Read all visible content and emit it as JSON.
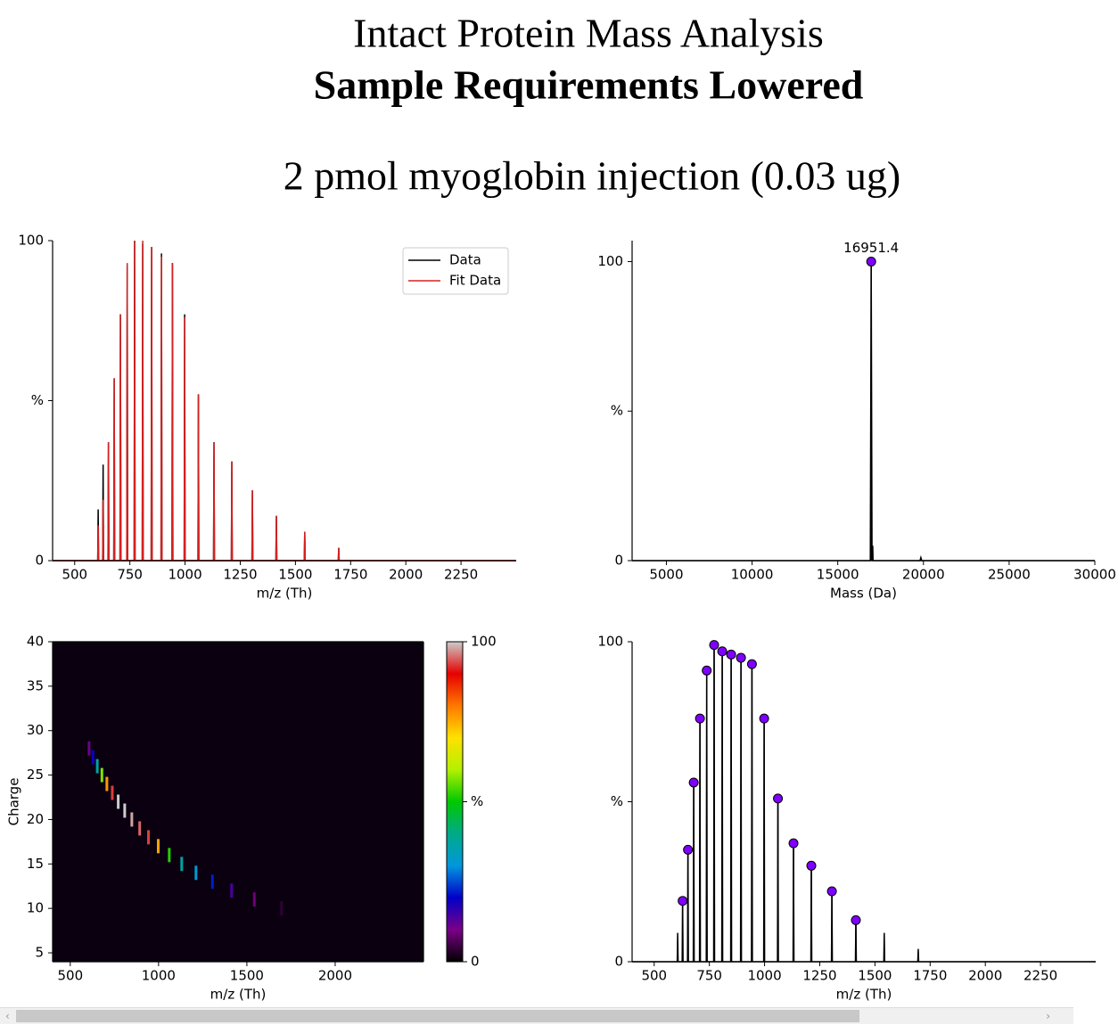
{
  "header": {
    "title": "Intact Protein Mass Analysis",
    "subtitle": "Sample Requirements Lowered",
    "caption": "2 pmol myoglobin injection (0.03 ug)"
  },
  "chart_data": [
    {
      "type": "line",
      "xlabel": "m/z (Th)",
      "xlim": [
        400,
        2500
      ],
      "xticks": [
        500,
        750,
        1000,
        1250,
        1500,
        1750,
        2000,
        2250
      ],
      "ylim": [
        0,
        100
      ],
      "yticks": [
        0,
        {
          "value": 50,
          "label": "%"
        },
        100
      ],
      "spines": [
        "left",
        "bottom"
      ],
      "legend": "upper right",
      "x": [
        400,
        604.4,
        606.4,
        608.4,
        626.8,
        628.8,
        630.8,
        651.0,
        653.0,
        655.0,
        677.1,
        679.1,
        681.1,
        705.3,
        707.3,
        709.3,
        736.0,
        738.0,
        740.0,
        769.5,
        771.5,
        773.5,
        806.2,
        808.2,
        810.2,
        846.6,
        848.6,
        850.6,
        891.2,
        893.2,
        895.2,
        940.8,
        942.8,
        944.8,
        996.1,
        998.1,
        1000.1,
        1058.5,
        1060.5,
        1062.5,
        1129.1,
        1131.1,
        1133.1,
        1209.8,
        1211.8,
        1213.8,
        1303.0,
        1305.0,
        1307.0,
        1411.6,
        1413.6,
        1415.6,
        1540.1,
        1542.1,
        1544.1,
        1694.1,
        1696.1,
        1698.1,
        2500
      ],
      "series": [
        {
          "name": "Data",
          "color": "#000000",
          "values": [
            0,
            0,
            16,
            0,
            0,
            30,
            0,
            0,
            37,
            0,
            0,
            57,
            0,
            0,
            77,
            0,
            0,
            92,
            0,
            0,
            100,
            0,
            0,
            99,
            0,
            0,
            98,
            0,
            0,
            96,
            0,
            0,
            93,
            0,
            0,
            77,
            0,
            0,
            52,
            0,
            0,
            37,
            0,
            0,
            31,
            0,
            0,
            22,
            0,
            0,
            14,
            0,
            0,
            9,
            0,
            0,
            4,
            0,
            0
          ]
        },
        {
          "name": "Fit Data",
          "color": "#d62020",
          "values": [
            0,
            0,
            11,
            0,
            0,
            19,
            0,
            0,
            37,
            0,
            0,
            57,
            0,
            0,
            77,
            0,
            0,
            93,
            0,
            0,
            100,
            0,
            0,
            100,
            0,
            0,
            98,
            0,
            0,
            95,
            0,
            0,
            93,
            0,
            0,
            76,
            0,
            0,
            52,
            0,
            0,
            37,
            0,
            0,
            31,
            0,
            0,
            22,
            0,
            0,
            14,
            0,
            0,
            9,
            0,
            0,
            4,
            0,
            0
          ]
        }
      ]
    },
    {
      "type": "line",
      "xlabel": "Mass (Da)",
      "xlim": [
        3000,
        30000
      ],
      "xticks": [
        5000,
        10000,
        15000,
        20000,
        25000,
        30000
      ],
      "ylim": [
        0,
        107
      ],
      "yticks": [
        0,
        {
          "value": 50,
          "label": "%"
        },
        100
      ],
      "spines": [
        "left",
        "bottom"
      ],
      "x": [
        3000,
        16900,
        16951.4,
        17000,
        17040,
        17060,
        17100,
        19800,
        19850,
        19900,
        30000
      ],
      "values": [
        0,
        0,
        100,
        0,
        5,
        0,
        0,
        0,
        1,
        0,
        0
      ],
      "color": "#000000",
      "markers": {
        "x": [
          16951.4
        ],
        "values": [
          100
        ],
        "color": "#7f00ff"
      }
    },
    {
      "type": "heatmap",
      "xlabel": "m/z (Th)",
      "ylabel": "Charge",
      "xlim": [
        400,
        2500
      ],
      "xticks": [
        500,
        1000,
        1500,
        2000
      ],
      "ylim": [
        4,
        40
      ],
      "yticks": [
        5,
        10,
        15,
        20,
        25,
        30,
        35,
        40
      ],
      "spines": [
        "left",
        "bottom",
        "right",
        "top"
      ],
      "background": "#0a0010",
      "x": [
        606.4,
        628.8,
        653.0,
        679.1,
        707.3,
        738.0,
        771.5,
        808.2,
        848.6,
        893.2,
        942.8,
        998.1,
        1060.5,
        1131.1,
        1211.8,
        1305.0,
        1413.6,
        1542.1,
        1696.1
      ],
      "y": [
        28,
        27,
        26,
        25,
        24,
        23,
        22,
        21,
        20,
        19,
        18,
        17,
        16,
        15,
        14,
        13,
        12,
        11,
        10
      ],
      "values": [
        11,
        19,
        37,
        57,
        77,
        93,
        100,
        100,
        98,
        95,
        93,
        76,
        52,
        37,
        31,
        22,
        14,
        9,
        4
      ],
      "clim": [
        0,
        100
      ],
      "cticks": [
        0,
        {
          "value": 50,
          "label": "%"
        },
        100
      ],
      "colorscale": [
        "#000000",
        "#7a0087",
        "#0000c8",
        "#0097dd",
        "#00aa88",
        "#00c800",
        "#b4f000",
        "#ffe100",
        "#ff7800",
        "#e60000",
        "#cccccc"
      ]
    },
    {
      "type": "line",
      "xlabel": "m/z (Th)",
      "xlim": [
        400,
        2500
      ],
      "xticks": [
        500,
        750,
        1000,
        1250,
        1500,
        1750,
        2000,
        2250
      ],
      "ylim": [
        0,
        100
      ],
      "yticks": [
        0,
        {
          "value": 50,
          "label": "%"
        },
        100
      ],
      "spines": [
        "left",
        "bottom"
      ],
      "color": "#000000",
      "x": [
        400,
        604.4,
        606.4,
        608.4,
        626.8,
        628.8,
        630.8,
        651.0,
        653.0,
        655.0,
        677.1,
        679.1,
        681.1,
        705.3,
        707.3,
        709.3,
        736.0,
        738.0,
        740.0,
        769.5,
        771.5,
        773.5,
        806.2,
        808.2,
        810.2,
        846.6,
        848.6,
        850.6,
        891.2,
        893.2,
        895.2,
        940.8,
        942.8,
        944.8,
        996.1,
        998.1,
        1000.1,
        1058.5,
        1060.5,
        1062.5,
        1129.1,
        1131.1,
        1133.1,
        1209.8,
        1211.8,
        1213.8,
        1303.0,
        1305.0,
        1307.0,
        1411.6,
        1413.6,
        1415.6,
        1540.1,
        1542.1,
        1544.1,
        1694.1,
        1696.1,
        1698.1,
        2500
      ],
      "values": [
        0,
        0,
        9,
        0,
        0,
        19,
        0,
        0,
        35,
        0,
        0,
        56,
        0,
        0,
        76,
        0,
        0,
        91,
        0,
        0,
        99,
        0,
        0,
        97,
        0,
        0,
        96,
        0,
        0,
        95,
        0,
        0,
        93,
        0,
        0,
        76,
        0,
        0,
        51,
        0,
        0,
        37,
        0,
        0,
        30,
        0,
        0,
        22,
        0,
        0,
        13,
        0,
        0,
        9,
        0,
        0,
        4,
        0,
        0
      ],
      "markers": {
        "x": [
          628.8,
          653.0,
          679.1,
          707.3,
          738.0,
          771.5,
          808.2,
          848.6,
          893.2,
          942.8,
          998.1,
          1060.5,
          1131.1,
          1211.8,
          1305.0,
          1413.6
        ],
        "values": [
          19,
          35,
          56,
          76,
          91,
          99,
          97,
          96,
          95,
          93,
          76,
          51,
          37,
          30,
          22,
          13
        ],
        "color": "#7f00ff"
      }
    }
  ]
}
